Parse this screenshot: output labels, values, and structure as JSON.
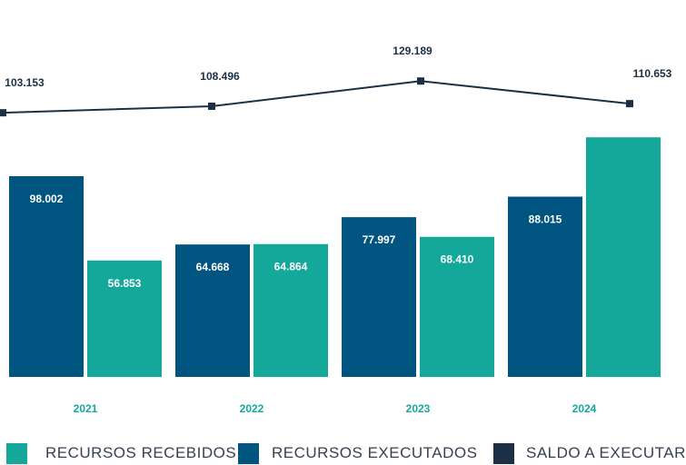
{
  "chart_data": {
    "type": "bar",
    "categories": [
      "2021",
      "2022",
      "2023",
      "2024"
    ],
    "series": [
      {
        "name": "RECURSOS EXECUTADOS",
        "kind": "bar",
        "color": "#005580",
        "values": [
          98002,
          64668,
          77997,
          88015
        ],
        "value_labels": [
          "98.002",
          "64.668",
          "77.997",
          "88.015"
        ]
      },
      {
        "name": "RECURSOS RECEBIDOS",
        "kind": "bar",
        "color": "#14A89B",
        "values": [
          56853,
          64864,
          68410,
          117000
        ],
        "value_labels": [
          "56.853",
          "64.864",
          "68.410",
          ""
        ]
      },
      {
        "name": "SALDO A EXECUTAR",
        "kind": "line",
        "color": "#1C3045",
        "values": [
          103153,
          108496,
          129189,
          110653
        ],
        "value_labels": [
          "103.153",
          "108.496",
          "129.189",
          "110.653"
        ]
      }
    ],
    "legend_position": "bottom",
    "grid": false
  },
  "legend": [
    {
      "label": "RECURSOS RECEBIDOS",
      "color": "#14A89B"
    },
    {
      "label": "RECURSOS EXECUTADOS",
      "color": "#005580"
    },
    {
      "label": "SALDO A EXECUTAR",
      "color": "#1C3045"
    }
  ],
  "colors": {
    "category_label": "#14A89B",
    "bar_label": "#ffffff",
    "line_label": "#1C3045"
  }
}
